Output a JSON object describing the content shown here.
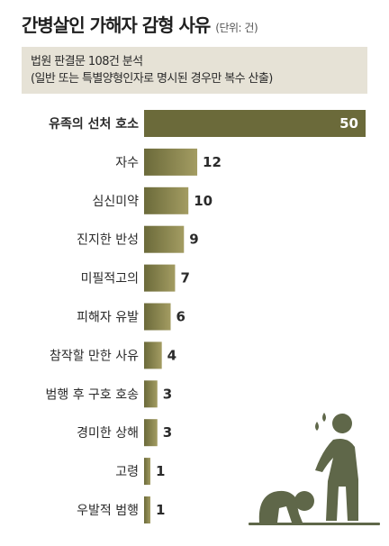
{
  "header": {
    "title": "간병살인 가해자 감형 사유",
    "unit": "(단위: 건)",
    "note_line1": "법원 판결문 108건 분석",
    "note_line2": "(일반 또는 특별양형인자로 명시된 경우만 복수 산출)"
  },
  "colors": {
    "bar_dark": "#6b6a3a",
    "bar_light": "#a39c62",
    "figure": "#5f6749",
    "note_bg": "#e6e2d6"
  },
  "chart_data": {
    "type": "bar",
    "orientation": "horizontal",
    "title": "간병살인 가해자 감형 사유",
    "categories": [
      "유족의 선처 호소",
      "자수",
      "심신미약",
      "진지한 반성",
      "미필적고의",
      "피해자 유발",
      "참작할 만한 사유",
      "범행 후 구호 호송",
      "경미한 상해",
      "고령",
      "우발적 범행"
    ],
    "values": [
      50,
      12,
      10,
      9,
      7,
      6,
      4,
      3,
      3,
      1,
      1
    ],
    "xlim": [
      0,
      50
    ],
    "grid": false,
    "legend": "none"
  }
}
